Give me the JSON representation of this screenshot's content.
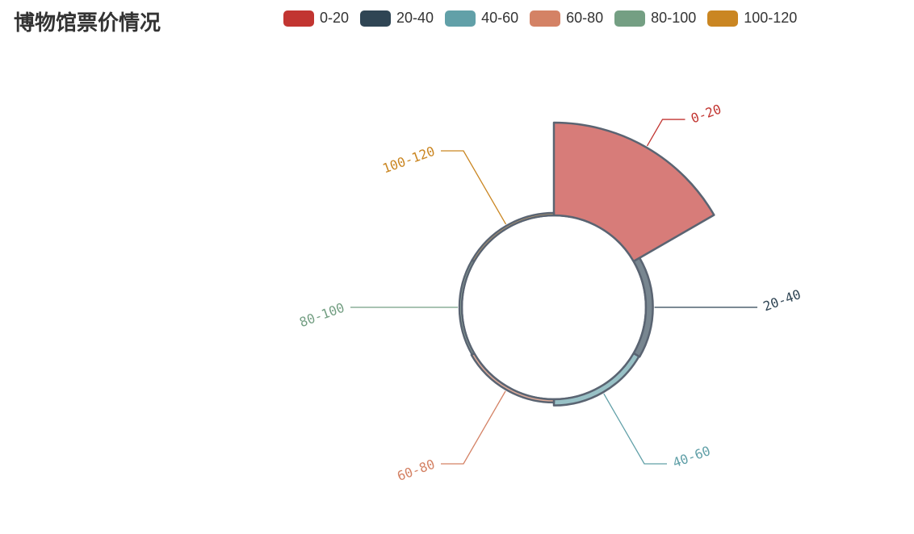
{
  "title": "博物馆票价情况",
  "chart_data": {
    "type": "pie",
    "subtype": "rose-radius",
    "categories": [
      "0-20",
      "20-40",
      "40-60",
      "60-80",
      "80-100",
      "100-120"
    ],
    "values": [
      120,
      6,
      5,
      1,
      0,
      0
    ],
    "colors": [
      "#c23531",
      "#2f4554",
      "#61a0a8",
      "#d48265",
      "#749f83",
      "#ca8622"
    ],
    "legend_position": "top"
  }
}
